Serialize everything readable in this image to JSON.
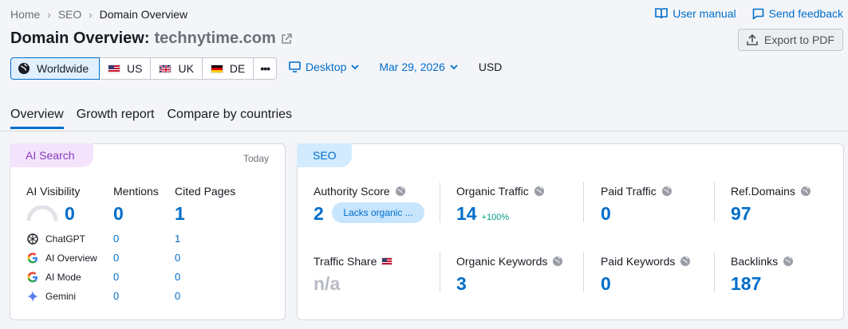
{
  "breadcrumbs": [
    "Home",
    "SEO",
    "Domain Overview"
  ],
  "top_links": {
    "manual": "User manual",
    "feedback": "Send feedback"
  },
  "title": {
    "prefix": "Domain Overview:",
    "domain": "technytime.com"
  },
  "export_label": "Export to PDF",
  "databases": [
    {
      "label": "Worldwide",
      "icon": "globe-icon"
    },
    {
      "label": "US",
      "icon": "us-flag-icon"
    },
    {
      "label": "UK",
      "icon": "uk-flag-icon"
    },
    {
      "label": "DE",
      "icon": "de-flag-icon"
    },
    {
      "label": "•••",
      "icon": "more-icon"
    }
  ],
  "filters": {
    "device": "Desktop",
    "date": "Mar 29, 2026",
    "currency": "USD"
  },
  "tabs": [
    "Overview",
    "Growth report",
    "Compare by countries"
  ],
  "ai_card": {
    "badge": "AI Search",
    "date": "Today",
    "metrics": [
      {
        "label": "AI Visibility",
        "value": "0"
      },
      {
        "label": "Mentions",
        "value": "0"
      },
      {
        "label": "Cited Pages",
        "value": "1"
      }
    ],
    "rows": [
      {
        "name": "ChatGPT",
        "mentions": "0",
        "cited": "1",
        "icon": "chatgpt-icon"
      },
      {
        "name": "AI Overview",
        "mentions": "0",
        "cited": "0",
        "icon": "google-icon"
      },
      {
        "name": "AI Mode",
        "mentions": "0",
        "cited": "0",
        "icon": "google-icon"
      },
      {
        "name": "Gemini",
        "mentions": "0",
        "cited": "0",
        "icon": "gemini-icon"
      }
    ]
  },
  "seo_card": {
    "badge": "SEO",
    "authority": {
      "label": "Authority Score",
      "value": "2",
      "pill": "Lacks organic ..."
    },
    "organic_traffic": {
      "label": "Organic Traffic",
      "value": "14",
      "delta": "+100%"
    },
    "paid_traffic": {
      "label": "Paid Traffic",
      "value": "0"
    },
    "ref_domains": {
      "label": "Ref.Domains",
      "value": "97"
    },
    "traffic_share": {
      "label": "Traffic Share",
      "value": "n/a"
    },
    "organic_keywords": {
      "label": "Organic Keywords",
      "value": "3"
    },
    "paid_keywords": {
      "label": "Paid Keywords",
      "value": "0"
    },
    "backlinks": {
      "label": "Backlinks",
      "value": "187"
    }
  },
  "colors": {
    "accent": "#006dca",
    "ai_badge": "#f3e4fc",
    "seo_badge": "#d2ebff",
    "positive": "#009f81"
  }
}
